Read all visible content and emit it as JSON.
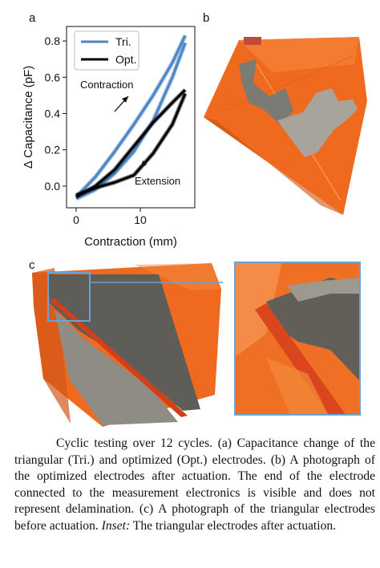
{
  "figure": {
    "panels": {
      "a": "a",
      "b": "b",
      "c": "c"
    },
    "colors": {
      "tri": "#4a86c5",
      "opt": "#000000",
      "orange": "#f06a1e",
      "inset_border": "#6aa2d4"
    },
    "annotations": {
      "contraction": "Contraction",
      "extension": "Extension"
    }
  },
  "chart_data": {
    "type": "line",
    "xlabel": "Contraction (mm)",
    "ylabel": "Δ Capacitance (pF)",
    "xlim": [
      -1.5,
      18.5
    ],
    "ylim": [
      -0.12,
      0.88
    ],
    "xticks": [
      0,
      10
    ],
    "yticks": [
      0.0,
      0.2,
      0.4,
      0.6,
      0.8
    ],
    "legend_position": "top-left",
    "series": [
      {
        "name": "Tri.",
        "contraction": {
          "x": [
            0,
            3,
            6,
            9,
            12,
            15,
            17
          ],
          "y": [
            -0.06,
            0.05,
            0.19,
            0.34,
            0.5,
            0.68,
            0.83
          ]
        },
        "extension": {
          "x": [
            17,
            15,
            12,
            9,
            6,
            3,
            0
          ],
          "y": [
            0.79,
            0.6,
            0.36,
            0.19,
            0.07,
            -0.02,
            -0.07
          ]
        }
      },
      {
        "name": "Opt.",
        "contraction": {
          "x": [
            0,
            3,
            6,
            9,
            12,
            15,
            17
          ],
          "y": [
            -0.06,
            0.0,
            0.09,
            0.22,
            0.35,
            0.46,
            0.53
          ]
        },
        "extension": {
          "x": [
            17,
            15,
            12,
            9,
            6,
            3,
            0
          ],
          "y": [
            0.51,
            0.34,
            0.18,
            0.06,
            0.02,
            -0.01,
            -0.05
          ]
        }
      }
    ]
  },
  "caption": {
    "lead": "Cyclic testing over 12 cycles. (a) Capacitance change of the triangular (Tri.) and optimized (Opt.) electrodes. (b) A photograph of the optimized electrodes after actuation. The end of the electrode connected to the measurement electronics is visible and does not represent delamination. (c) A photograph of the triangular electrodes before actuation. ",
    "inset_label": "Inset:",
    "tail": " The triangular electrodes after actuation."
  }
}
